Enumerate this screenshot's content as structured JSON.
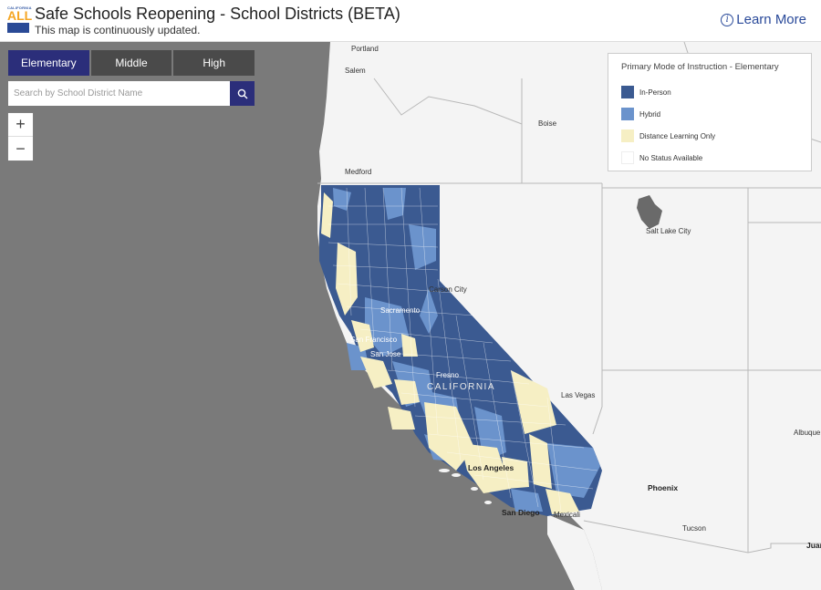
{
  "header": {
    "logo_top": "CALIFORNIA",
    "logo_text": "ALL",
    "title": "Safe Schools Reopening - School Districts (BETA)",
    "subtitle": "This map is continuously updated.",
    "learn_more": "Learn More",
    "info_icon": "info-icon"
  },
  "tabs": [
    {
      "label": "Elementary",
      "active": true
    },
    {
      "label": "Middle",
      "active": false
    },
    {
      "label": "High",
      "active": false
    }
  ],
  "search": {
    "placeholder": "Search by School District Name",
    "value": "",
    "icon": "search-icon"
  },
  "zoom": {
    "in": "+",
    "out": "−"
  },
  "legend": {
    "title": "Primary Mode of Instruction - Elementary",
    "items": [
      {
        "label": "In-Person",
        "color": "#3b5a91"
      },
      {
        "label": "Hybrid",
        "color": "#6b93cc"
      },
      {
        "label": "Distance Learning Only",
        "color": "#f6efc4"
      },
      {
        "label": "No Status Available",
        "color": "#ffffff"
      }
    ]
  },
  "colors": {
    "ocean": "#7a7a7a",
    "land": "#f4f4f4",
    "in_person": "#3b5a91",
    "hybrid": "#6b93cc",
    "distance": "#f6efc4",
    "brand": "#2b2e7a"
  },
  "places": {
    "portland": "Portland",
    "salem": "Salem",
    "boise": "Boise",
    "medford": "Medford",
    "salt_lake": "Salt Lake City",
    "carson": "Carson City",
    "sacramento": "Sacramento",
    "sf": "San Francisco",
    "san_jose": "San Jose",
    "fresno": "Fresno",
    "california": "CALIFORNIA",
    "las_vegas": "Las Vegas",
    "albuquerque": "Albuque",
    "los_angeles": "Los Angeles",
    "phoenix": "Phoenix",
    "san_diego": "San Diego",
    "mexicali": "Mexicali",
    "tucson": "Tucson",
    "juarez": "Juar"
  }
}
